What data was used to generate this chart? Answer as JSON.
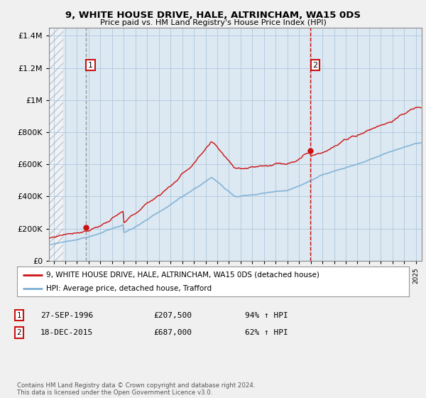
{
  "title": "9, WHITE HOUSE DRIVE, HALE, ALTRINCHAM, WA15 0DS",
  "subtitle": "Price paid vs. HM Land Registry's House Price Index (HPI)",
  "ylabel_values": [
    0,
    200000,
    400000,
    600000,
    800000,
    1000000,
    1200000,
    1400000
  ],
  "ylim": [
    0,
    1450000
  ],
  "hpi_color": "#7bafd4",
  "price_color": "#cc1111",
  "legend_label_price": "9, WHITE HOUSE DRIVE, HALE, ALTRINCHAM, WA15 0DS (detached house)",
  "legend_label_hpi": "HPI: Average price, detached house, Trafford",
  "transaction1_date": "27-SEP-1996",
  "transaction1_price": "£207,500",
  "transaction1_hpi": "94% ↑ HPI",
  "transaction2_date": "18-DEC-2015",
  "transaction2_price": "£687,000",
  "transaction2_hpi": "62% ↑ HPI",
  "footer": "Contains HM Land Registry data © Crown copyright and database right 2024.\nThis data is licensed under the Open Government Licence v3.0.",
  "outer_bg": "#f0f0f0",
  "plot_bg_color": "#dce8f2",
  "grid_color": "#b0c8dc",
  "marker1_x": 1996.75,
  "marker1_y": 207500,
  "marker2_x": 2015.96,
  "marker2_y": 687000,
  "vline1_x": 1996.75,
  "vline2_x": 2015.96,
  "xlim_start": 1993.6,
  "xlim_end": 2025.5
}
